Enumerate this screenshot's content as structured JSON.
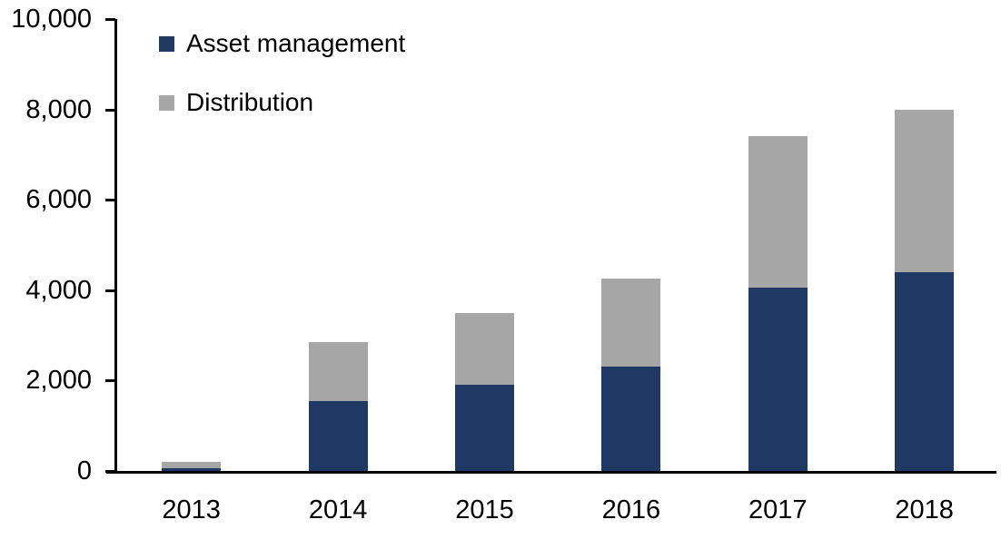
{
  "chart_data": {
    "type": "bar",
    "stacked": true,
    "title": "",
    "xlabel": "",
    "ylabel": "",
    "categories": [
      "2013",
      "2014",
      "2015",
      "2016",
      "2017",
      "2018"
    ],
    "series": [
      {
        "name": "Asset management",
        "color": "#1f3864",
        "values": [
          70,
          1550,
          1900,
          2300,
          4050,
          4400
        ]
      },
      {
        "name": "Distribution",
        "color": "#a6a6a6",
        "values": [
          130,
          1300,
          1600,
          1950,
          3350,
          3600
        ]
      }
    ],
    "totals": [
      200,
      2850,
      3500,
      4250,
      7400,
      8000
    ],
    "ylim": [
      0,
      10000
    ],
    "y_ticks": [
      {
        "value": 0,
        "label": "0"
      },
      {
        "value": 2000,
        "label": "2,000"
      },
      {
        "value": 4000,
        "label": "4,000"
      },
      {
        "value": 6000,
        "label": "6,000"
      },
      {
        "value": 8000,
        "label": "8,000"
      },
      {
        "value": 10000,
        "label": "10,000"
      }
    ],
    "legend": {
      "position": "top-left",
      "entries": [
        "Asset management",
        "Distribution"
      ]
    },
    "grid": false,
    "axis_color": "#000000",
    "text_color": "#000000",
    "background": "#ffffff"
  }
}
